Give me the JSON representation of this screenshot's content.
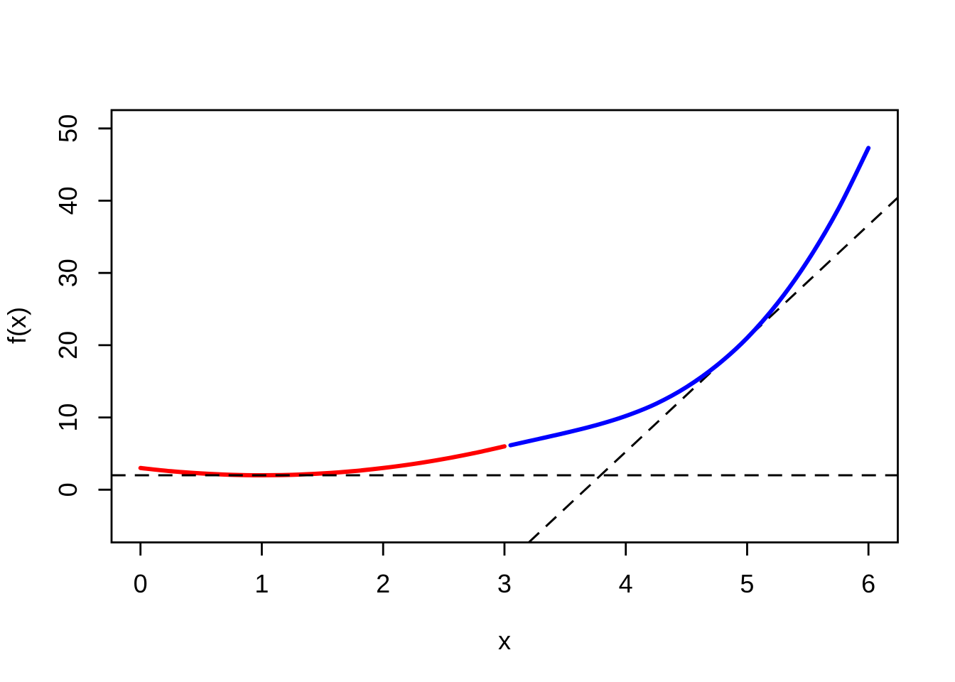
{
  "figure": {
    "background_color": "#ffffff",
    "frame_color": "#000000"
  },
  "chart_data": {
    "type": "line",
    "title": "",
    "xlabel": "x",
    "ylabel": "f(x)",
    "xlim": [
      -0.24,
      6.24
    ],
    "ylim": [
      -7.3,
      52.5
    ],
    "grid": false,
    "legend_position": "none",
    "x_ticks": [
      0,
      1,
      2,
      3,
      4,
      5,
      6
    ],
    "y_ticks": [
      0,
      10,
      20,
      30,
      40,
      50
    ],
    "colors": {
      "left_curve": "#FF0000",
      "right_curve": "#0000FF",
      "tangent_lines": "#000000"
    },
    "series": [
      {
        "name": "convex-curve-left-red",
        "color": "#FF0000",
        "style": "solid",
        "smooth": true,
        "width": 6,
        "points": [
          [
            0,
            3
          ],
          [
            0.25,
            2.56
          ],
          [
            0.5,
            2.25
          ],
          [
            0.75,
            2.06
          ],
          [
            1,
            2
          ],
          [
            1.25,
            2.06
          ],
          [
            1.5,
            2.25
          ],
          [
            1.75,
            2.56
          ],
          [
            2,
            3
          ],
          [
            2.25,
            3.56
          ],
          [
            2.5,
            4.25
          ],
          [
            2.75,
            5.06
          ],
          [
            3,
            6
          ]
        ]
      },
      {
        "name": "horizontal-tangent-dashed-line",
        "color": "#000000",
        "style": "dashed",
        "smooth": false,
        "width": 3,
        "points": [
          [
            -0.24,
            2
          ],
          [
            6.24,
            2
          ]
        ]
      },
      {
        "name": "oblique-tangent-dashed-line",
        "color": "#000000",
        "style": "dashed",
        "smooth": false,
        "width": 3,
        "points": [
          [
            3.2,
            -7.3
          ],
          [
            6.24,
            40.4
          ]
        ]
      },
      {
        "name": "convex-curve-right-blue",
        "color": "#0000FF",
        "style": "solid",
        "smooth": true,
        "width": 6,
        "points": [
          [
            3.05,
            6.15
          ],
          [
            3.25,
            6.9
          ],
          [
            3.5,
            7.85
          ],
          [
            3.75,
            8.9
          ],
          [
            4,
            10.2
          ],
          [
            4.25,
            11.9
          ],
          [
            4.5,
            14.2
          ],
          [
            4.75,
            17.2
          ],
          [
            5,
            21
          ],
          [
            5.25,
            25.8
          ],
          [
            5.5,
            31.7
          ],
          [
            5.75,
            38.8
          ],
          [
            6,
            47.3
          ]
        ]
      }
    ]
  }
}
